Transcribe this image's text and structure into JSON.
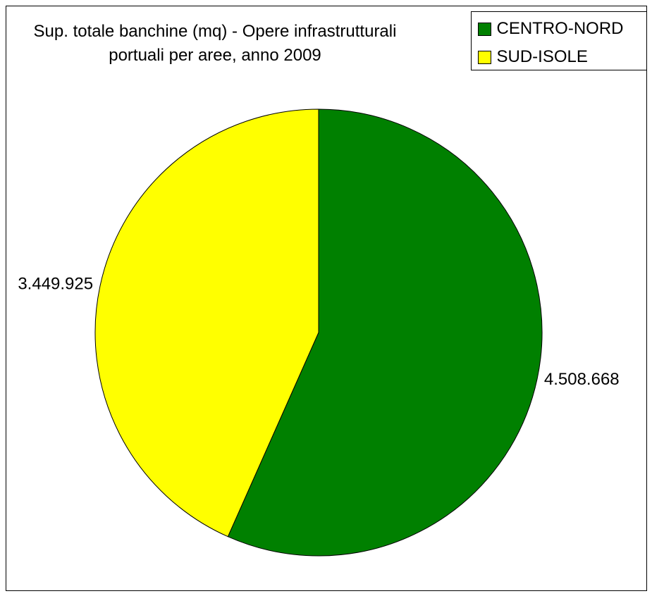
{
  "chart_data": {
    "type": "pie",
    "title": "Sup. totale banchine (mq) - Opere infrastrutturali portuali per aree, anno 2009",
    "categories": [
      "CENTRO-NORD",
      "SUD-ISOLE"
    ],
    "values": [
      4508668,
      3449925
    ],
    "value_labels": [
      "4.508.668",
      "3.449.925"
    ],
    "colors": [
      "#008000",
      "#ffff00"
    ],
    "legend": "top-right"
  }
}
